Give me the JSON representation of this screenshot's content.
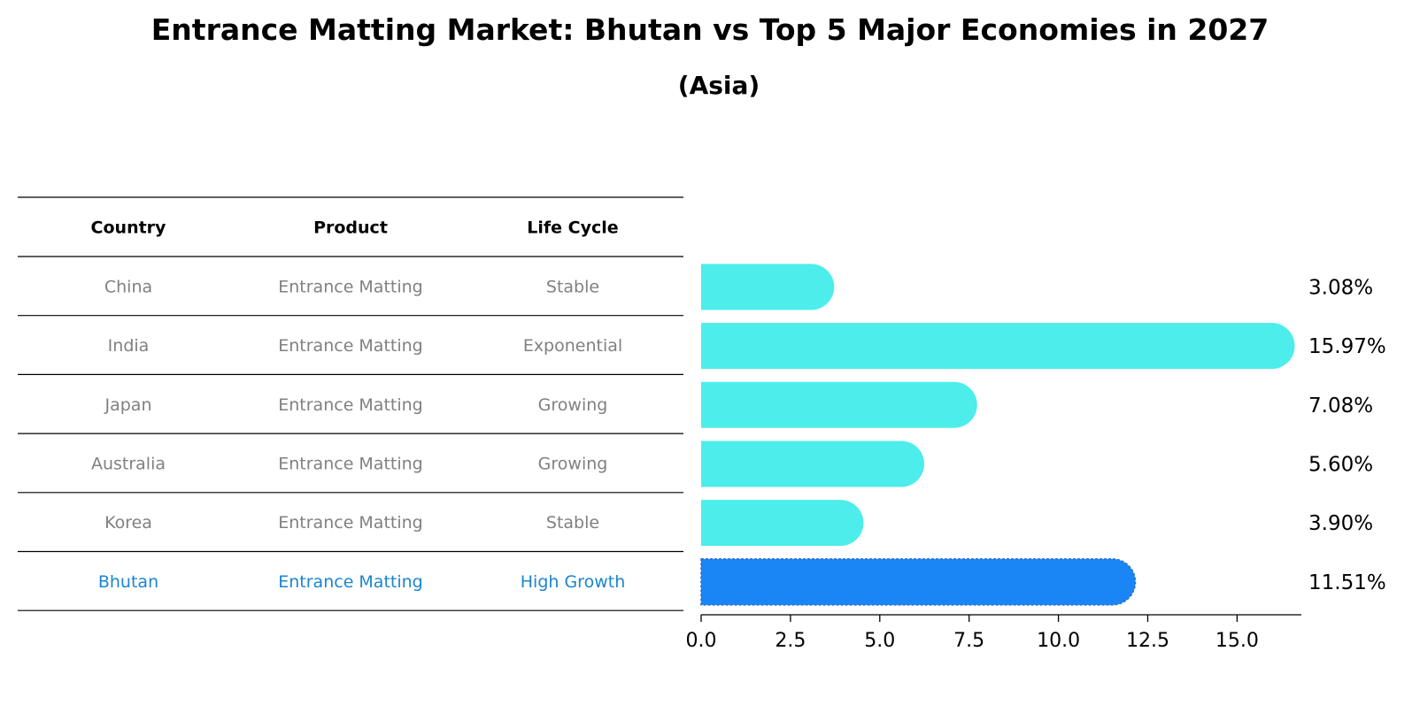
{
  "title": "Entrance Matting Market: Bhutan vs Top 5 Major Economies in 2027",
  "subtitle": "(Asia)",
  "table": {
    "headers": [
      "Country",
      "Product",
      "Life Cycle"
    ],
    "rows": [
      {
        "country": "China",
        "product": "Entrance Matting",
        "life_cycle": "Stable"
      },
      {
        "country": "India",
        "product": "Entrance Matting",
        "life_cycle": "Exponential"
      },
      {
        "country": "Japan",
        "product": "Entrance Matting",
        "life_cycle": "Growing"
      },
      {
        "country": "Australia",
        "product": "Entrance Matting",
        "life_cycle": "Growing"
      },
      {
        "country": "Korea",
        "product": "Entrance Matting",
        "life_cycle": "Stable"
      },
      {
        "country": "Bhutan",
        "product": "Entrance Matting",
        "life_cycle": "High Growth"
      }
    ]
  },
  "colors": {
    "bar": "#4CEDEA",
    "highlight_bar": "#1A86F5",
    "highlight_text": "#1A86D0",
    "row_text": "#808080"
  },
  "chart_data": {
    "type": "bar",
    "orientation": "horizontal",
    "categories": [
      "China",
      "India",
      "Japan",
      "Australia",
      "Korea",
      "Bhutan"
    ],
    "values": [
      3.08,
      15.97,
      7.08,
      5.6,
      3.9,
      11.51
    ],
    "value_labels": [
      "3.08%",
      "15.97%",
      "7.08%",
      "5.60%",
      "3.90%",
      "11.51%"
    ],
    "highlight": "Bhutan",
    "xlim": [
      0,
      16.8
    ],
    "xticks": [
      0.0,
      2.5,
      5.0,
      7.5,
      10.0,
      12.5,
      15.0
    ],
    "xtick_labels": [
      "0.0",
      "2.5",
      "5.0",
      "7.5",
      "10.0",
      "12.5",
      "15.0"
    ],
    "xlabel": "",
    "ylabel": ""
  }
}
